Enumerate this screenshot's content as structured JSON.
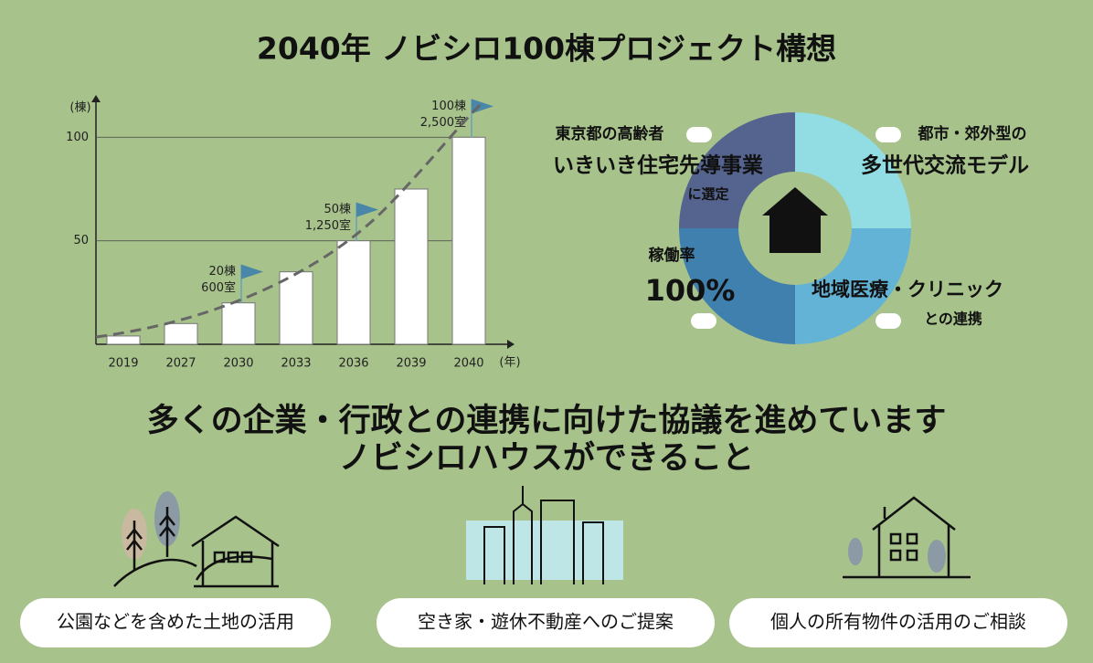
{
  "title": "2040年 ノビシロ100棟プロジェクト構想",
  "chart_data": {
    "type": "bar",
    "categories": [
      "2019",
      "2027",
      "2030",
      "2033",
      "2036",
      "2039",
      "2040"
    ],
    "values": [
      4,
      10,
      20,
      35,
      50,
      75,
      100
    ],
    "color": "#ffffff",
    "ylim": [
      0,
      120
    ],
    "yticks": [
      50,
      100
    ],
    "grid": true,
    "y_unit": "(棟)",
    "x_unit": "(年)",
    "annotations": [
      {
        "category": "2030",
        "lines": [
          "20棟",
          "600室"
        ]
      },
      {
        "category": "2036",
        "lines": [
          "50棟",
          "1,250室"
        ]
      },
      {
        "category": "2040",
        "lines": [
          "100棟",
          "2,500室"
        ]
      }
    ]
  },
  "donut": {
    "segments": [
      {
        "lines": [
          "東京都の高齢者",
          "いきいき住宅先導事業",
          "に選定"
        ]
      },
      {
        "lines": [
          "都市・郊外型の",
          "多世代交流モデル"
        ]
      },
      {
        "lines": [
          "稼働率",
          "100%"
        ]
      },
      {
        "lines": [
          "地域医療・クリニック",
          "との連携"
        ]
      }
    ]
  },
  "headline": [
    "多くの企業・行政との連携に向けた協議を進めています",
    "ノビシロハウスができること"
  ],
  "features": [
    "公園などを含めた土地の活用",
    "空き家・遊休不動産へのご提案",
    "個人の所有物件の活用のご相談"
  ]
}
